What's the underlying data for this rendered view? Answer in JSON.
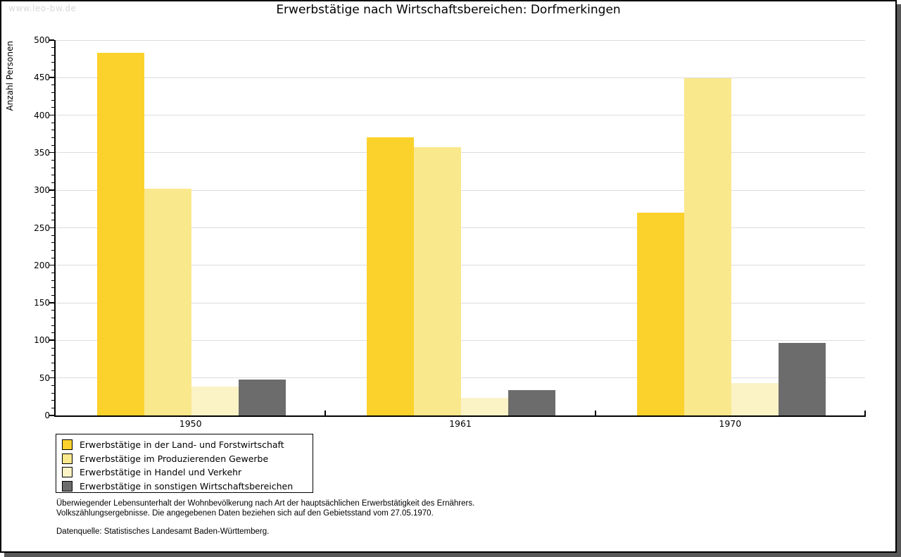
{
  "watermark": "www.leo-bw.de",
  "chart_data": {
    "type": "bar",
    "title": "Erwerbstätige nach Wirtschaftsbereichen: Dorfmerkingen",
    "ylabel": "Anzahl Personen",
    "categories": [
      "1950",
      "1961",
      "1970"
    ],
    "series": [
      {
        "name": "Erwerbstätige in der Land- und Forstwirtschaft",
        "color": "#FBD22C",
        "values": [
          483,
          371,
          270
        ]
      },
      {
        "name": "Erwerbstätige im Produzierenden Gewerbe",
        "color": "#FAE88D",
        "values": [
          302,
          357,
          449
        ]
      },
      {
        "name": "Erwerbstätige in Handel und Verkehr",
        "color": "#FBF2C6",
        "values": [
          38,
          23,
          43
        ]
      },
      {
        "name": "Erwerbstätige in sonstigen Wirtschaftsbereichen",
        "color": "#6C6C6C",
        "values": [
          48,
          34,
          97
        ]
      }
    ],
    "ylim": [
      0,
      500
    ],
    "ytick_step": 50,
    "yminor_step": 10,
    "grid": true,
    "gridline_color": "#DCDCDC",
    "axis_color": "#000000",
    "legend_position": "bottom-left"
  },
  "footnotes": {
    "line1": "Überwiegender Lebensunterhalt der Wohnbevölkerung nach Art der hauptsächlichen Erwerbstätigkeit des Ernährers.",
    "line2": "Volkszählungsergebnisse. Die angegebenen Daten beziehen sich auf den Gebietsstand vom 27.05.1970.",
    "source": "Datenquelle: Statistisches Landesamt Baden-Württemberg."
  }
}
